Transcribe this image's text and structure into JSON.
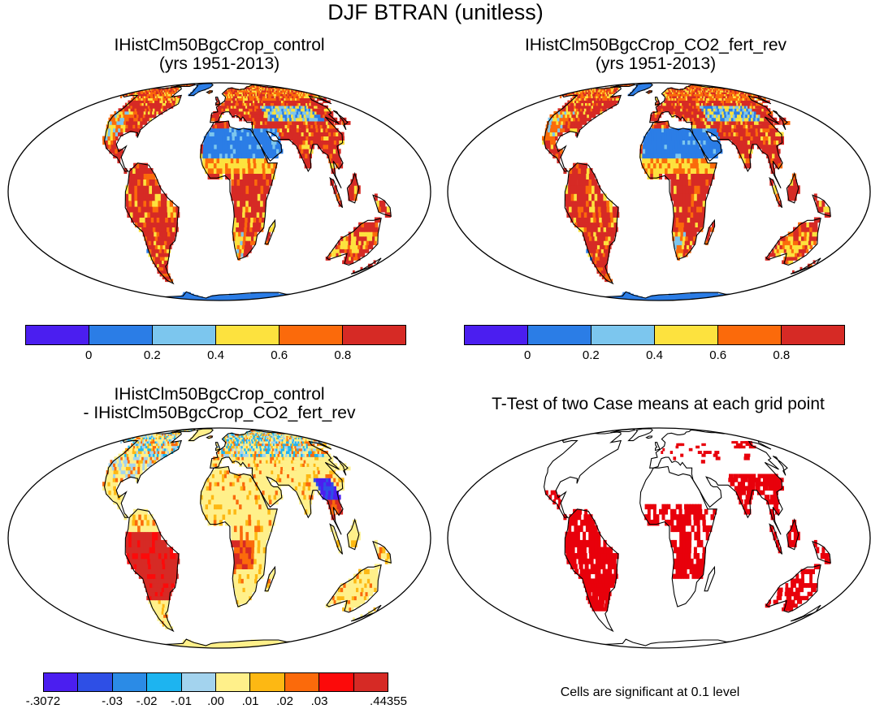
{
  "main_title": "DJF BTRAN (unitless)",
  "panels": [
    {
      "title": "IHistClm50BgcCrop_control\n(yrs 1951-2013)",
      "kind": "mean"
    },
    {
      "title": "IHistClm50BgcCrop_CO2_fert_rev\n(yrs 1951-2013)",
      "kind": "mean"
    },
    {
      "title": "IHistClm50BgcCrop_control\n- IHistClm50BgcCrop_CO2_fert_rev",
      "kind": "diff"
    },
    {
      "title": "T-Test of two Case means at each grid point",
      "kind": "ttest"
    }
  ],
  "colorbar_mean": {
    "colors": [
      "#4b1ef0",
      "#2b7de6",
      "#7cc6ee",
      "#fde23e",
      "#fb6a0b",
      "#d62a25"
    ],
    "labels": [
      "0",
      "0.2",
      "0.4",
      "0.6",
      "0.8"
    ]
  },
  "colorbar_diff": {
    "colors": [
      "#4b1ef0",
      "#2e4fe6",
      "#2b8be6",
      "#1db4f0",
      "#a3d3ee",
      "#fff08a",
      "#fdb813",
      "#fb6a0b",
      "#fc0a0a",
      "#d62a25"
    ],
    "labels": [
      ".3072",
      "-.03",
      "-.02",
      "-.01",
      ".00",
      ".01",
      ".02",
      ".03",
      ".44355"
    ]
  },
  "ttest_note": "Cells are significant at 0.1 level",
  "significance_color": "#e8000b"
}
